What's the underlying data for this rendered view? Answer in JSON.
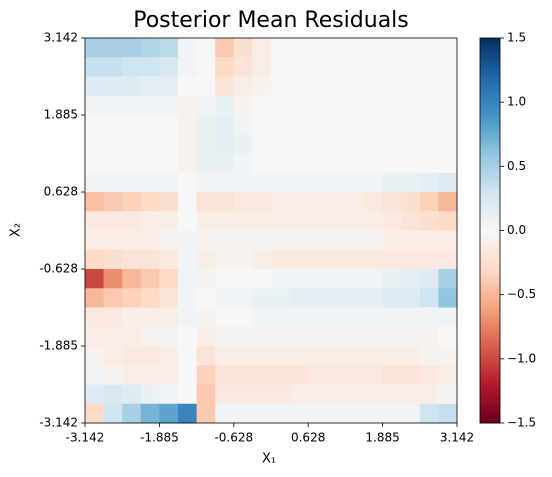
{
  "chart_data": {
    "type": "heatmap",
    "title": "Posterior Mean Residuals",
    "xlabel": "X₁",
    "ylabel": "X₂",
    "xlim": [
      -3.142,
      3.142
    ],
    "ylim": [
      -3.142,
      3.142
    ],
    "xticks": [
      -3.142,
      -1.885,
      -0.628,
      0.628,
      1.885,
      3.142
    ],
    "yticks": [
      -3.142,
      -1.885,
      -0.628,
      0.628,
      1.885,
      3.142
    ],
    "colormap": "RdBu",
    "clim": [
      -1.5,
      1.5
    ],
    "cticks": [
      {
        "value": -1.5,
        "label": "−1.5"
      },
      {
        "value": -1.0,
        "label": "−1.0"
      },
      {
        "value": -0.5,
        "label": "−0.5"
      },
      {
        "value": 0,
        "label": "0.0"
      },
      0.5,
      {
        "value": 1.0,
        "label": "1.0"
      },
      1.5
    ],
    "z": [
      [
        0.5,
        0.5,
        0.5,
        0.45,
        0.4,
        0.05,
        0,
        -0.4,
        -0.25,
        -0.1,
        0,
        0,
        0,
        0,
        0,
        0,
        0,
        0,
        0,
        0
      ],
      [
        0.35,
        0.35,
        0.3,
        0.3,
        0.25,
        0.05,
        0,
        -0.3,
        -0.2,
        -0.1,
        0,
        0,
        0,
        0,
        0,
        0,
        0,
        0,
        0,
        0
      ],
      [
        0.2,
        0.2,
        0.2,
        0.15,
        0.15,
        0,
        0,
        -0.2,
        -0.1,
        -0.05,
        0,
        0,
        0,
        0,
        0,
        0,
        0,
        0,
        0,
        0
      ],
      [
        0.05,
        0.05,
        0.05,
        0.05,
        0.05,
        -0.05,
        0.05,
        0.1,
        -0.05,
        0,
        0,
        0,
        0,
        0,
        0,
        0,
        0,
        0,
        0,
        0
      ],
      [
        0,
        0,
        0,
        0,
        0,
        -0.05,
        0.1,
        0.15,
        0.05,
        0,
        0,
        0,
        0,
        0,
        0,
        0,
        0,
        0,
        0,
        0
      ],
      [
        0,
        0,
        0,
        0,
        0,
        -0.05,
        0.1,
        0.15,
        0.1,
        0,
        0,
        0,
        0,
        0,
        0,
        0,
        0,
        0,
        0,
        0
      ],
      [
        0,
        0,
        0,
        0,
        0,
        -0.05,
        0.1,
        0.1,
        0.05,
        0,
        0,
        0,
        0,
        0,
        0,
        0,
        0,
        0,
        0,
        0
      ],
      [
        0.05,
        0.05,
        0.05,
        0.05,
        0.05,
        0,
        0.05,
        0.05,
        0.05,
        0.05,
        0.05,
        0.05,
        0.05,
        0.05,
        0.05,
        0.05,
        0.1,
        0.1,
        0.15,
        0.2
      ],
      [
        -0.45,
        -0.4,
        -0.35,
        -0.3,
        -0.25,
        0,
        -0.2,
        -0.2,
        -0.15,
        -0.15,
        -0.1,
        -0.1,
        -0.1,
        -0.1,
        -0.1,
        -0.15,
        -0.2,
        -0.25,
        -0.35,
        -0.5
      ],
      [
        -0.15,
        -0.15,
        -0.15,
        -0.1,
        -0.1,
        0,
        -0.1,
        -0.1,
        -0.1,
        -0.1,
        -0.1,
        -0.1,
        -0.1,
        -0.1,
        -0.1,
        -0.1,
        -0.15,
        -0.2,
        -0.25,
        -0.3
      ],
      [
        -0.1,
        -0.1,
        -0.1,
        -0.1,
        -0.05,
        0.05,
        -0.05,
        -0.05,
        -0.05,
        -0.05,
        -0.05,
        -0.05,
        -0.05,
        -0.05,
        -0.05,
        -0.05,
        -0.1,
        -0.1,
        -0.1,
        -0.1
      ],
      [
        -0.3,
        -0.25,
        -0.2,
        -0.2,
        -0.15,
        0.05,
        -0.1,
        -0.05,
        -0.05,
        -0.1,
        -0.15,
        -0.15,
        -0.15,
        -0.15,
        -0.15,
        -0.15,
        -0.15,
        -0.15,
        -0.15,
        -0.15
      ],
      [
        -1.0,
        -0.7,
        -0.5,
        -0.4,
        -0.3,
        0.05,
        -0.05,
        0,
        0,
        0,
        0.05,
        0.05,
        0.05,
        0.05,
        0.05,
        0.05,
        0.1,
        0.15,
        0.2,
        0.5
      ],
      [
        -0.5,
        -0.4,
        -0.35,
        -0.3,
        -0.2,
        0.05,
        0,
        0.05,
        0.05,
        0.1,
        0.1,
        0.15,
        0.15,
        0.15,
        0.15,
        0.15,
        0.2,
        0.2,
        0.3,
        0.6
      ],
      [
        -0.15,
        -0.15,
        -0.1,
        -0.1,
        -0.1,
        0.05,
        -0.05,
        0,
        0,
        0.05,
        0.05,
        0.05,
        0.05,
        0.05,
        0.05,
        0.05,
        0.05,
        0.05,
        0.05,
        0.05
      ],
      [
        -0.1,
        -0.1,
        -0.1,
        -0.05,
        -0.05,
        0,
        -0.1,
        -0.05,
        -0.05,
        -0.05,
        -0.05,
        -0.05,
        -0.05,
        -0.05,
        -0.05,
        -0.05,
        -0.05,
        -0.05,
        -0.05,
        0
      ],
      [
        -0.05,
        -0.1,
        -0.15,
        -0.15,
        -0.1,
        0,
        -0.2,
        -0.1,
        -0.1,
        -0.1,
        -0.1,
        -0.1,
        -0.1,
        -0.1,
        -0.1,
        -0.1,
        -0.1,
        -0.1,
        -0.05,
        -0.05
      ],
      [
        0.05,
        -0.05,
        -0.1,
        -0.1,
        -0.1,
        0,
        -0.35,
        -0.2,
        -0.2,
        -0.2,
        -0.2,
        -0.2,
        -0.15,
        -0.15,
        -0.15,
        -0.15,
        -0.2,
        -0.2,
        -0.15,
        -0.1
      ],
      [
        0.2,
        0.25,
        0.2,
        0.1,
        0.05,
        0,
        -0.4,
        -0.15,
        -0.15,
        -0.15,
        -0.15,
        -0.1,
        -0.1,
        -0.1,
        -0.1,
        -0.1,
        -0.1,
        -0.1,
        -0.1,
        -0.05
      ],
      [
        -0.3,
        0.3,
        0.5,
        0.7,
        0.8,
        1.0,
        -0.4,
        0.05,
        0.05,
        0.05,
        0.05,
        0.05,
        0.05,
        0.05,
        0.05,
        0.05,
        0.05,
        0.05,
        0.3,
        0.35
      ]
    ]
  }
}
